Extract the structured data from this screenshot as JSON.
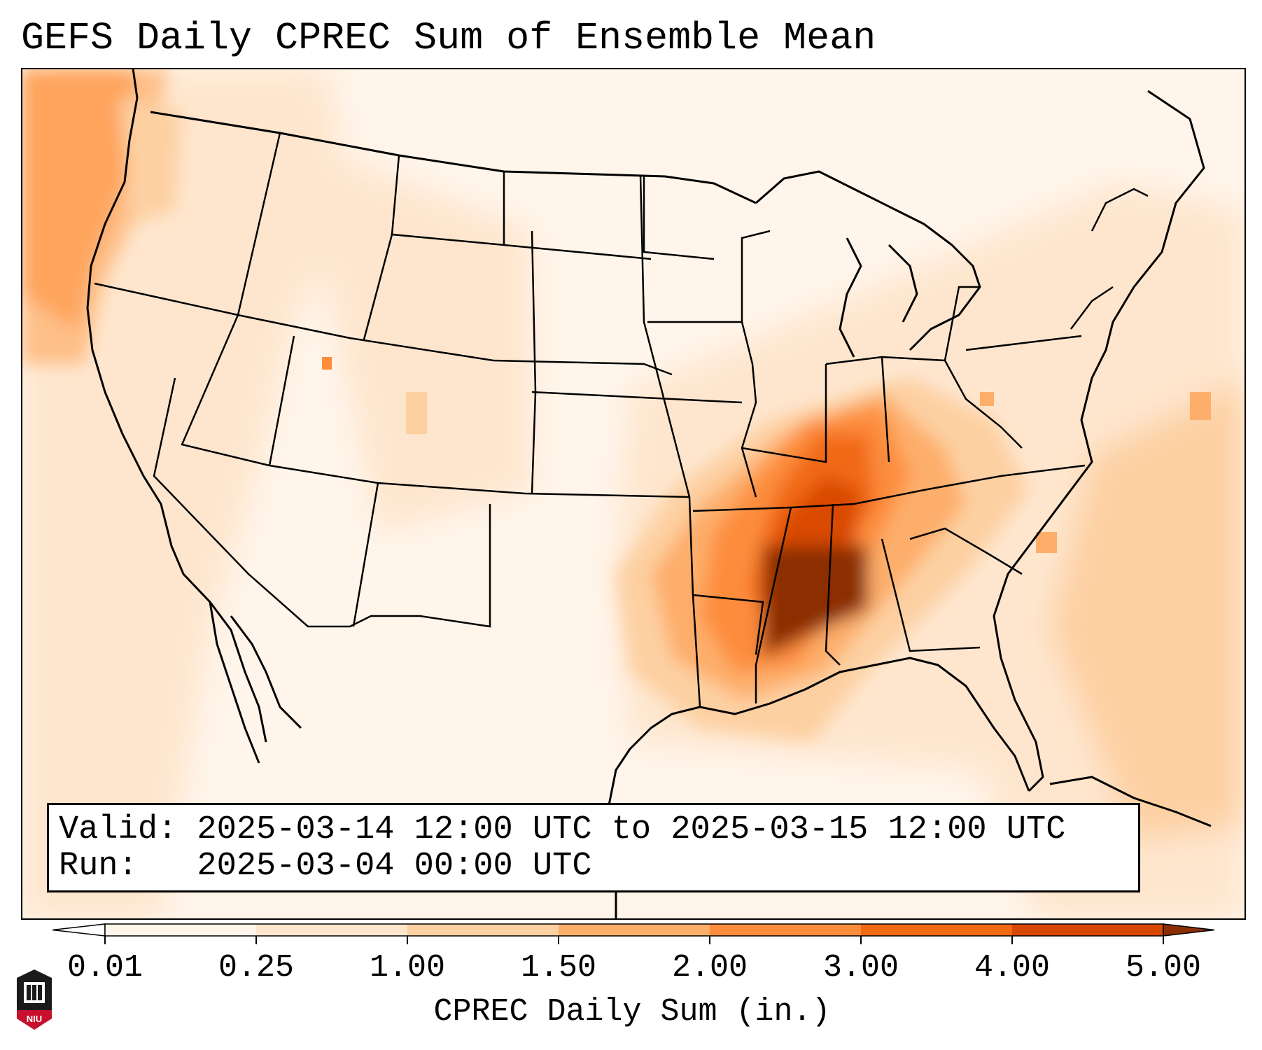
{
  "title": "GEFS Daily CPREC Sum of Ensemble Mean",
  "info": {
    "valid": "Valid: 2025-03-14 12:00 UTC to 2025-03-15 12:00 UTC",
    "run": "Run:   2025-03-04 00:00 UTC"
  },
  "colorbar": {
    "label": "CPREC Daily Sum (in.)",
    "ticks": [
      "0.01",
      "0.25",
      "1.00",
      "1.50",
      "2.00",
      "3.00",
      "4.00",
      "5.00"
    ],
    "colors": [
      "#fff5eb",
      "#fee6ce",
      "#fdd0a2",
      "#fdae6b",
      "#fd8d3c",
      "#f16913",
      "#d94801",
      "#8c2d04"
    ]
  },
  "logo": {
    "text": "NIU",
    "name": "niu-logo"
  }
}
